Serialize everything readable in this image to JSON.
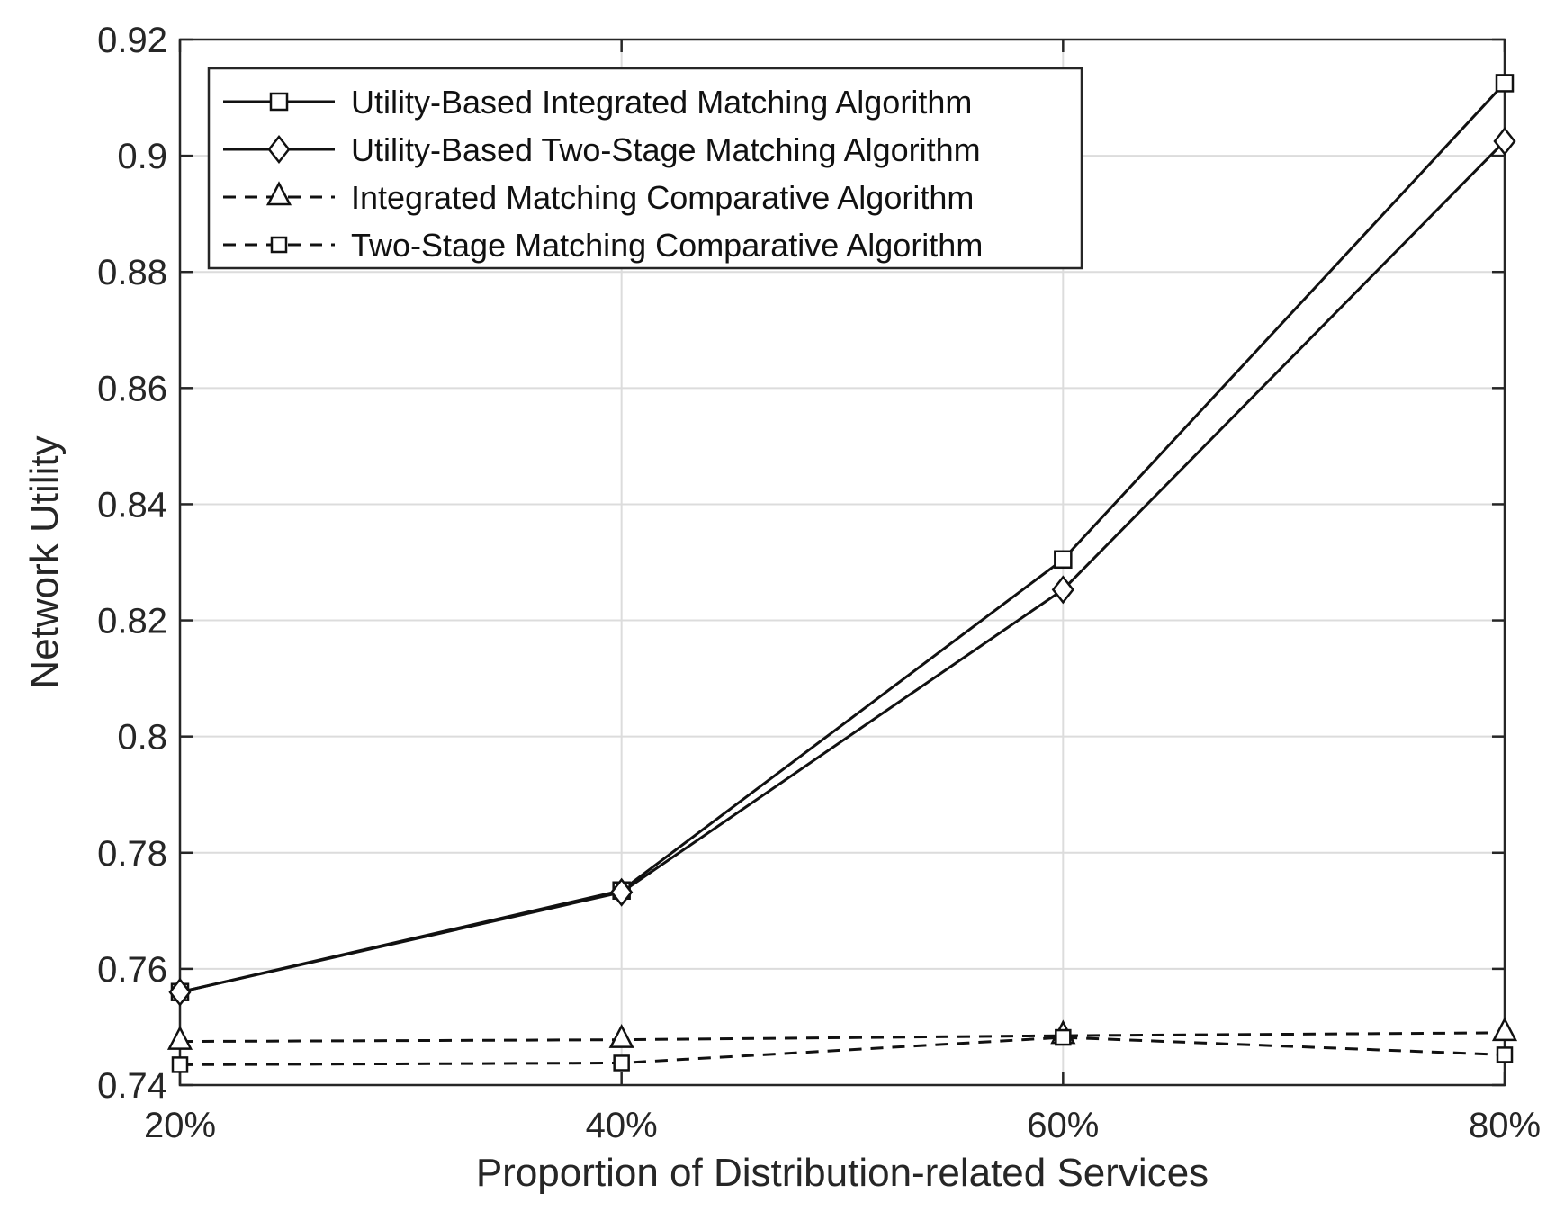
{
  "chart_data": {
    "type": "line",
    "title": "",
    "xlabel": "Proportion of Distribution-related Services",
    "ylabel": "Network Utility",
    "categories": [
      "20%",
      "40%",
      "60%",
      "80%"
    ],
    "ylim": [
      0.74,
      0.92
    ],
    "yticks": [
      0.74,
      0.76,
      0.78,
      0.8,
      0.82,
      0.84,
      0.86,
      0.88,
      0.9,
      0.92
    ],
    "ytick_labels": [
      "0.74",
      "0.76",
      "0.78",
      "0.8",
      "0.82",
      "0.84",
      "0.86",
      "0.88",
      "0.9",
      "0.92"
    ],
    "grid": true,
    "legend_position": "top-left",
    "series": [
      {
        "name": "Utility-Based Integrated Matching Algorithm",
        "values": [
          0.756,
          0.7735,
          0.8305,
          0.9125
        ],
        "line_style": "solid",
        "marker": "square"
      },
      {
        "name": "Utility-Based Two-Stage Matching Algorithm",
        "values": [
          0.756,
          0.7732,
          0.8253,
          0.9025
        ],
        "line_style": "solid",
        "marker": "diamond"
      },
      {
        "name": "Integrated Matching Comparative Algorithm",
        "values": [
          0.7475,
          0.7478,
          0.7485,
          0.749
        ],
        "line_style": "dashed",
        "marker": "triangle"
      },
      {
        "name": "Two-Stage Matching Comparative Algorithm",
        "values": [
          0.7435,
          0.7438,
          0.7482,
          0.7452
        ],
        "line_style": "dashed",
        "marker": "small-square"
      }
    ]
  }
}
